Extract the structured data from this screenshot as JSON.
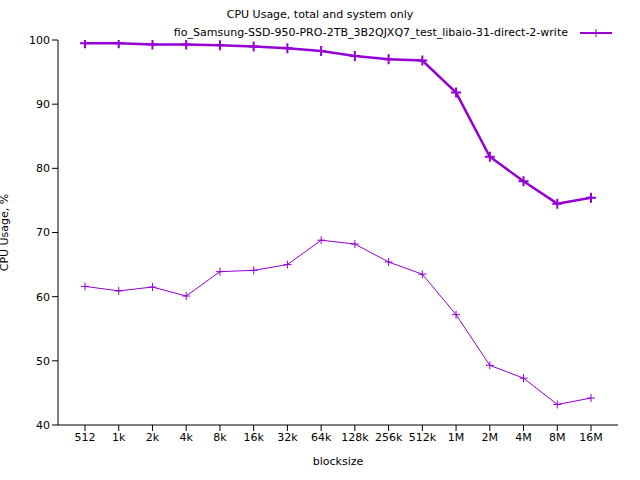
{
  "chart_data": {
    "type": "line",
    "title": "CPU Usage, total and system only",
    "x_label": "blocksize",
    "y_label": "CPU Usage, %",
    "categories": [
      "512",
      "1k",
      "2k",
      "4k",
      "8k",
      "16k",
      "32k",
      "64k",
      "128k",
      "256k",
      "512k",
      "1M",
      "2M",
      "4M",
      "8M",
      "16M"
    ],
    "series": [
      {
        "name": "fio_Samsung-SSD-950-PRO-2TB_3B2QJXQ7_test_libaio-31-direct-2-write",
        "color": "#9400d3",
        "marker": "plus",
        "line_style": "solid",
        "values": [
          99.5,
          99.5,
          99.3,
          99.3,
          99.2,
          99.0,
          98.7,
          98.3,
          97.5,
          97.0,
          96.8,
          91.8,
          81.8,
          78.0,
          74.5,
          75.4
        ]
      },
      {
        "color": "#9400d3",
        "marker": "plus",
        "line_style": "solid",
        "values": [
          61.6,
          60.9,
          61.5,
          60.1,
          63.9,
          64.1,
          65.0,
          68.8,
          68.2,
          65.4,
          63.5,
          57.2,
          49.3,
          47.3,
          43.2,
          44.2
        ]
      }
    ],
    "ylim": [
      40,
      100
    ],
    "yticks": [
      40,
      50,
      60,
      70,
      80,
      90,
      100
    ],
    "grid": false,
    "legend": "upper right"
  }
}
